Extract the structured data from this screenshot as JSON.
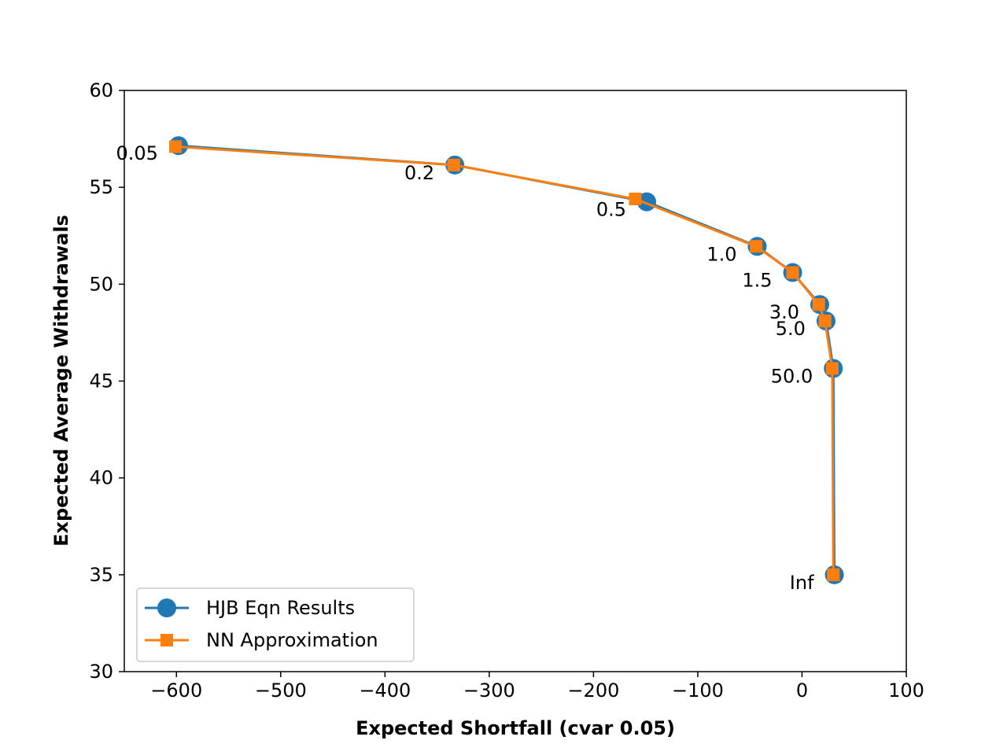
{
  "colors": {
    "hjb": "#1f77b4",
    "nn": "#ff7f0e",
    "axes": "#000000",
    "legend_border": "#cccccc"
  },
  "chart_data": {
    "type": "line",
    "title": "",
    "xlabel": "Expected Shortfall (cvar 0.05)",
    "ylabel": "Expected Average Withdrawals",
    "xlim": [
      -650,
      100
    ],
    "ylim": [
      30,
      60
    ],
    "xticks": [
      -600,
      -500,
      -400,
      -300,
      -200,
      -100,
      0,
      100
    ],
    "xtick_labels": [
      "−600",
      "−500",
      "−400",
      "−300",
      "−200",
      "−100",
      "0",
      "100"
    ],
    "yticks": [
      30,
      35,
      40,
      45,
      50,
      55,
      60
    ],
    "ytick_labels": [
      "30",
      "35",
      "40",
      "45",
      "50",
      "55",
      "60"
    ],
    "grid": false,
    "legend_position": "lower-left",
    "series": [
      {
        "name": "HJB Eqn Results",
        "marker": "circle",
        "color_key": "hjb",
        "x": [
          -598,
          -333,
          -149,
          -43,
          -9,
          17,
          23,
          30,
          31
        ],
        "y": [
          57.15,
          56.15,
          54.25,
          51.95,
          50.6,
          48.95,
          48.1,
          45.65,
          35.0
        ]
      },
      {
        "name": "NN Approximation",
        "marker": "square",
        "color_key": "nn",
        "x": [
          -601,
          -334,
          -160,
          -44,
          -9,
          16,
          22,
          29,
          30
        ],
        "y": [
          57.1,
          56.15,
          54.4,
          51.95,
          50.6,
          48.95,
          48.1,
          45.65,
          35.0
        ]
      }
    ],
    "point_labels": [
      {
        "text": "0.05",
        "x": -598,
        "y": 57.15
      },
      {
        "text": "0.2",
        "x": -333,
        "y": 56.15
      },
      {
        "text": "0.5",
        "x": -149,
        "y": 54.25
      },
      {
        "text": "1.0",
        "x": -43,
        "y": 51.95
      },
      {
        "text": "1.5",
        "x": -9,
        "y": 50.6
      },
      {
        "text": "3.0",
        "x": 17,
        "y": 48.95
      },
      {
        "text": "5.0",
        "x": 23,
        "y": 48.1
      },
      {
        "text": "50.0",
        "x": 30,
        "y": 45.65
      },
      {
        "text": "Inf",
        "x": 31,
        "y": 35.0
      }
    ]
  }
}
